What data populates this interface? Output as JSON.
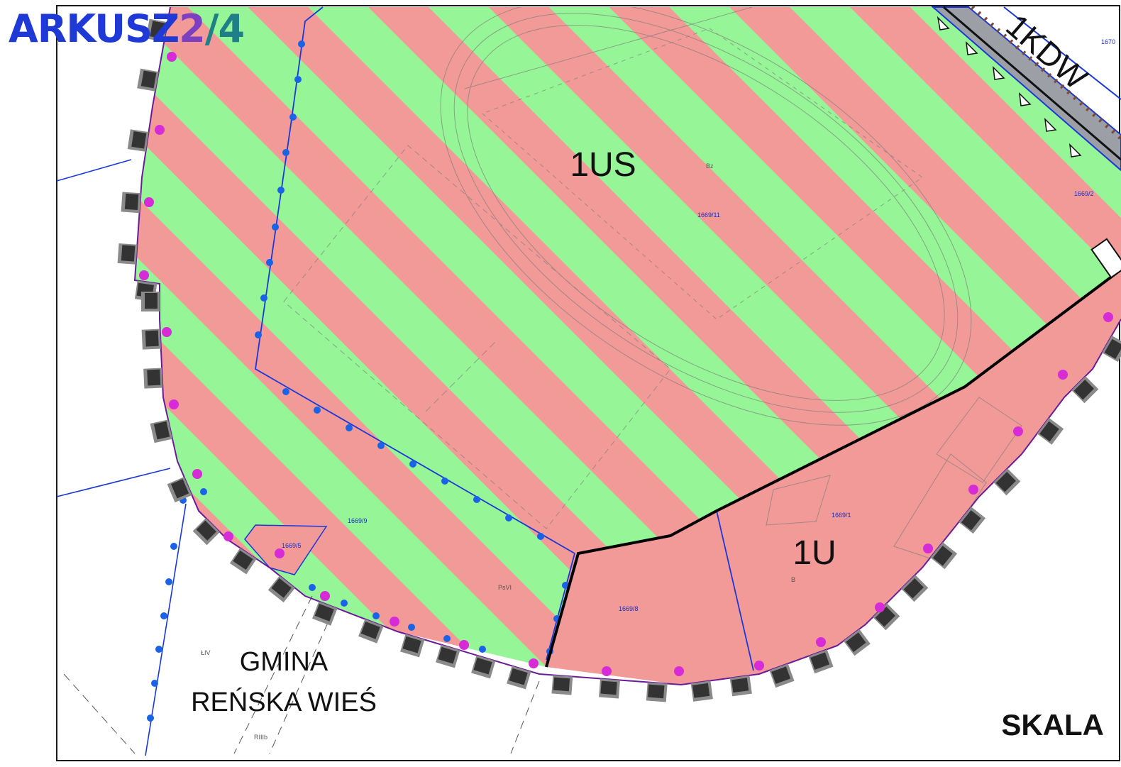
{
  "sheet": {
    "label": "ARKUSZ",
    "number": "2",
    "separator": "/",
    "total": "4"
  },
  "zones": {
    "sport": "1US",
    "service": "1U",
    "road": "1KDW"
  },
  "municipality": {
    "line1": "GMINA",
    "line2": "REŃSKA WIEŚ"
  },
  "scale_label": "SKALA",
  "parcels": [
    "1669/11",
    "1669/9",
    "1669/5",
    "1669/8",
    "1669/1",
    "1669/2",
    "1670"
  ],
  "land_classes": [
    "Bz",
    "B",
    "PsVI",
    "ŁIV",
    "RIIIb"
  ],
  "colors": {
    "stripe_red": "#f29a98",
    "stripe_green": "#96f596",
    "boundary_blue": "#1a38d8",
    "boundary_dots": "#1a62e6",
    "boundary_magenta": "#d62bd6",
    "boundary_blocks": "#3a3a3a",
    "frame": "#1b1b1b"
  }
}
